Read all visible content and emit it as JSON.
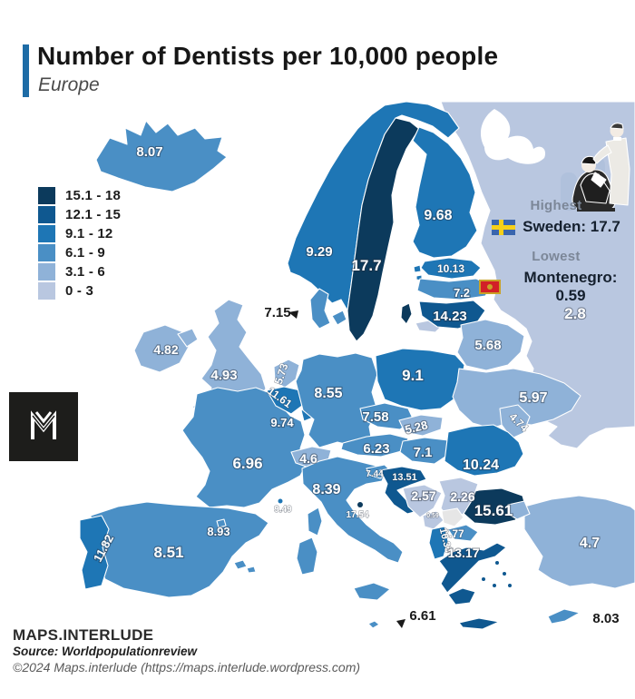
{
  "header": {
    "title": "Number of Dentists per 10,000 people",
    "subtitle": "Europe",
    "accent_color": "#1e6ca6"
  },
  "legend": {
    "items": [
      {
        "label": "15.1 - 18",
        "color": "#0c3a5c"
      },
      {
        "label": "12.1 - 15",
        "color": "#0f5890"
      },
      {
        "label": "9.1 - 12",
        "color": "#1e76b5"
      },
      {
        "label": "6.1 - 9",
        "color": "#4a8fc5"
      },
      {
        "label": "3.1 - 6",
        "color": "#8fb2d8"
      },
      {
        "label": "0 - 3",
        "color": "#b9c7e0"
      }
    ]
  },
  "callout": {
    "highest_label": "Highest",
    "highest_text": "Sweden: 17.7",
    "lowest_label": "Lowest",
    "lowest_text": "Montenegro: 0.59"
  },
  "footer": {
    "brand": "MAPS.INTERLUDE",
    "source": "Source: Worldpopulationreview",
    "copyright": "©2024 Maps.interlude (https://maps.interlude.wordpress.com)"
  },
  "chart_data": {
    "type": "choropleth",
    "title": "Number of Dentists per 10,000 people",
    "region": "Europe",
    "unit": "dentists per 10,000 people",
    "no_data_color": "#e6e6e6",
    "bins": [
      {
        "range": "15.1 - 18",
        "color": "#0c3a5c"
      },
      {
        "range": "12.1 - 15",
        "color": "#0f5890"
      },
      {
        "range": "9.1 - 12",
        "color": "#1e76b5"
      },
      {
        "range": "6.1 - 9",
        "color": "#4a8fc5"
      },
      {
        "range": "3.1 - 6",
        "color": "#8fb2d8"
      },
      {
        "range": "0 - 3",
        "color": "#b9c7e0"
      }
    ],
    "countries": [
      {
        "id": "iceland",
        "name": "Iceland",
        "value": "8.07",
        "bin": 3
      },
      {
        "id": "norway",
        "name": "Norway",
        "value": "9.29",
        "bin": 2
      },
      {
        "id": "sweden",
        "name": "Sweden",
        "value": "17.7",
        "bin": 0
      },
      {
        "id": "finland",
        "name": "Finland",
        "value": "9.68",
        "bin": 2
      },
      {
        "id": "russia",
        "name": "Russia",
        "value": "2.8",
        "bin": 5
      },
      {
        "id": "estonia",
        "name": "Estonia",
        "value": "10.13",
        "bin": 2
      },
      {
        "id": "latvia",
        "name": "Latvia",
        "value": "7.2",
        "bin": 3
      },
      {
        "id": "lithuania",
        "name": "Lithuania",
        "value": "14.23",
        "bin": 1
      },
      {
        "id": "denmark",
        "name": "Denmark",
        "value": "7.15",
        "bin": 3
      },
      {
        "id": "ireland",
        "name": "Ireland",
        "value": "4.82",
        "bin": 4
      },
      {
        "id": "uk",
        "name": "United Kingdom",
        "value": "4.93",
        "bin": 4
      },
      {
        "id": "netherlands",
        "name": "Netherlands",
        "value": "5.73",
        "bin": 4
      },
      {
        "id": "belgium",
        "name": "Belgium",
        "value": "11.61",
        "bin": 2
      },
      {
        "id": "luxembourg",
        "name": "Luxembourg",
        "value": "9.74",
        "bin": 2
      },
      {
        "id": "germany",
        "name": "Germany",
        "value": "8.55",
        "bin": 3
      },
      {
        "id": "poland",
        "name": "Poland",
        "value": "9.1",
        "bin": 2
      },
      {
        "id": "belarus",
        "name": "Belarus",
        "value": "5.68",
        "bin": 4
      },
      {
        "id": "ukraine",
        "name": "Ukraine",
        "value": "5.97",
        "bin": 4
      },
      {
        "id": "czechia",
        "name": "Czechia",
        "value": "7.58",
        "bin": 3
      },
      {
        "id": "slovakia",
        "name": "Slovakia",
        "value": "5.28",
        "bin": 4
      },
      {
        "id": "austria",
        "name": "Austria",
        "value": "6.23",
        "bin": 3
      },
      {
        "id": "hungary",
        "name": "Hungary",
        "value": "7.1",
        "bin": 3
      },
      {
        "id": "moldova",
        "name": "Moldova",
        "value": "4.74",
        "bin": 4
      },
      {
        "id": "romania",
        "name": "Romania",
        "value": "10.24",
        "bin": 2
      },
      {
        "id": "france",
        "name": "France",
        "value": "6.96",
        "bin": 3
      },
      {
        "id": "switzerland",
        "name": "Switzerland",
        "value": "4.6",
        "bin": 4
      },
      {
        "id": "monaco",
        "name": "Monaco",
        "value": "9.49",
        "bin": 2
      },
      {
        "id": "italy",
        "name": "Italy",
        "value": "8.39",
        "bin": 3
      },
      {
        "id": "san-marino",
        "name": "San Marino",
        "value": "17.54",
        "bin": 0
      },
      {
        "id": "slovenia",
        "name": "Slovenia",
        "value": "7.44",
        "bin": 3
      },
      {
        "id": "croatia",
        "name": "Croatia",
        "value": "13.51",
        "bin": 1
      },
      {
        "id": "bosnia",
        "name": "Bosnia and Herzegovina",
        "value": "2.57",
        "bin": 5
      },
      {
        "id": "serbia",
        "name": "Serbia",
        "value": "2.26",
        "bin": 5
      },
      {
        "id": "montenegro",
        "name": "Montenegro",
        "value": "0.59",
        "bin": 5
      },
      {
        "id": "kosovo",
        "name": "Kosovo",
        "value": null,
        "bin": -1
      },
      {
        "id": "north-macedonia",
        "name": "North Macedonia",
        "value": "7.77",
        "bin": 3
      },
      {
        "id": "albania",
        "name": "Albania",
        "value": "10.33",
        "bin": 2
      },
      {
        "id": "greece",
        "name": "Greece",
        "value": "13.17",
        "bin": 1
      },
      {
        "id": "bulgaria",
        "name": "Bulgaria",
        "value": "15.61",
        "bin": 0
      },
      {
        "id": "turkey",
        "name": "Turkey",
        "value": "4.7",
        "bin": 4
      },
      {
        "id": "spain",
        "name": "Spain",
        "value": "8.51",
        "bin": 3
      },
      {
        "id": "portugal",
        "name": "Portugal",
        "value": "11.82",
        "bin": 2
      },
      {
        "id": "andorra",
        "name": "Andorra",
        "value": "8.93",
        "bin": 3
      },
      {
        "id": "malta",
        "name": "Malta",
        "value": "6.61",
        "bin": 3
      },
      {
        "id": "cyprus",
        "name": "Cyprus",
        "value": "8.03",
        "bin": 3
      }
    ]
  }
}
